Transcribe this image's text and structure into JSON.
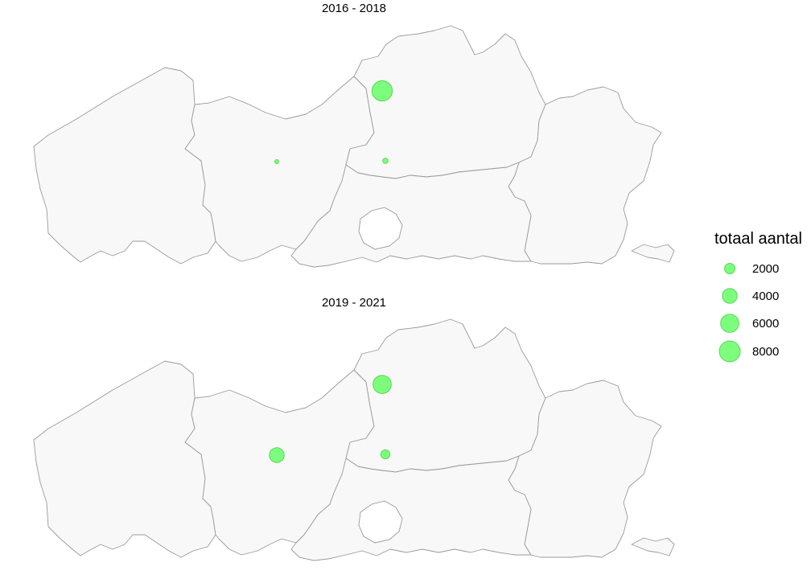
{
  "chart_data": {
    "type": "scatter",
    "map": "Vlaanderen provinces",
    "legend": {
      "title": "totaal aantal",
      "placement": "right",
      "sizes": [
        2000,
        4000,
        6000,
        8000
      ],
      "labels": [
        "2000",
        "4000",
        "6000",
        "8000"
      ]
    },
    "bubble_color": "#66ff66",
    "panels": [
      {
        "title": "2016 - 2018",
        "points": [
          {
            "location": "Antwerpen north",
            "value": 7500
          },
          {
            "location": "Oost-Vlaanderen centre",
            "value": 300
          },
          {
            "location": "Antwerpen south",
            "value": 500
          }
        ]
      },
      {
        "title": "2019 - 2021",
        "points": [
          {
            "location": "Antwerpen north",
            "value": 6000
          },
          {
            "location": "Oost-Vlaanderen centre",
            "value": 4000
          },
          {
            "location": "Antwerpen south",
            "value": 1500
          }
        ]
      }
    ]
  }
}
